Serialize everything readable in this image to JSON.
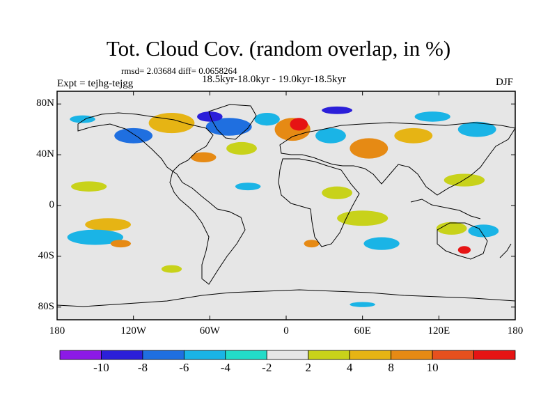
{
  "title": "Tot. Cloud Cov. (random overlap, in %)",
  "stats": "rmsd= 2.03684 diff= 0.0658264",
  "period": "18.5kyr-18.0kyr - 19.0kyr-18.5kyr",
  "experiment": "Expt = tejhg-tejgg",
  "season": "DJF",
  "map": {
    "projection": "cylindrical-equidistant",
    "lon_range": [
      -180,
      180
    ],
    "lat_range": [
      -90,
      90
    ],
    "background_color": "#e6e6e6",
    "y_ticks": [
      {
        "label": "80N",
        "value": 80
      },
      {
        "label": "40N",
        "value": 40
      },
      {
        "label": "0",
        "value": 0
      },
      {
        "label": "40S",
        "value": -40
      },
      {
        "label": "80S",
        "value": -80
      }
    ],
    "x_ticks": [
      {
        "label": "180",
        "value": -180
      },
      {
        "label": "120W",
        "value": -120
      },
      {
        "label": "60W",
        "value": -60
      },
      {
        "label": "0",
        "value": 0
      },
      {
        "label": "60E",
        "value": 60
      },
      {
        "label": "120E",
        "value": 120
      },
      {
        "label": "180",
        "value": 180
      }
    ],
    "anomalies": [
      {
        "lon": -140,
        "lat": -15,
        "rx": 18,
        "ry": 5,
        "level": 4,
        "name": "pacific-south-positive"
      },
      {
        "lon": -150,
        "lat": -25,
        "rx": 22,
        "ry": 6,
        "level": -4,
        "name": "pacific-south-negative"
      },
      {
        "lon": -130,
        "lat": -30,
        "rx": 8,
        "ry": 3,
        "level": 6,
        "name": "pacific-south-core"
      },
      {
        "lon": -155,
        "lat": 15,
        "rx": 14,
        "ry": 4,
        "level": 2,
        "name": "pacific-north-positive"
      },
      {
        "lon": -120,
        "lat": 55,
        "rx": 15,
        "ry": 6,
        "level": -6,
        "name": "north-america-negative"
      },
      {
        "lon": -90,
        "lat": 65,
        "rx": 18,
        "ry": 8,
        "level": 4,
        "name": "hudson-positive"
      },
      {
        "lon": -45,
        "lat": 62,
        "rx": 18,
        "ry": 7,
        "level": -6,
        "name": "greenland-negative"
      },
      {
        "lon": -60,
        "lat": 70,
        "rx": 10,
        "ry": 4,
        "level": -8,
        "name": "baffin-core"
      },
      {
        "lon": -65,
        "lat": 38,
        "rx": 10,
        "ry": 4,
        "level": 6,
        "name": "us-east-positive"
      },
      {
        "lon": -35,
        "lat": 45,
        "rx": 12,
        "ry": 5,
        "level": 2,
        "name": "atlantic-north-positive"
      },
      {
        "lon": 5,
        "lat": 60,
        "rx": 14,
        "ry": 9,
        "level": 6,
        "name": "scandinavia-positive"
      },
      {
        "lon": 10,
        "lat": 64,
        "rx": 7,
        "ry": 5,
        "level": 10,
        "name": "scandinavia-core"
      },
      {
        "lon": -15,
        "lat": 68,
        "rx": 10,
        "ry": 5,
        "level": -4,
        "name": "norwegian-sea-negative"
      },
      {
        "lon": 35,
        "lat": 55,
        "rx": 12,
        "ry": 6,
        "level": -4,
        "name": "russia-negative"
      },
      {
        "lon": 65,
        "lat": 45,
        "rx": 15,
        "ry": 8,
        "level": 6,
        "name": "central-asia-positive"
      },
      {
        "lon": 100,
        "lat": 55,
        "rx": 15,
        "ry": 6,
        "level": 4,
        "name": "siberia-positive"
      },
      {
        "lon": 115,
        "lat": 70,
        "rx": 14,
        "ry": 4,
        "level": -4,
        "name": "siberia-north-negative"
      },
      {
        "lon": 150,
        "lat": 60,
        "rx": 15,
        "ry": 6,
        "level": -4,
        "name": "northeast-asia-negative"
      },
      {
        "lon": 140,
        "lat": 20,
        "rx": 16,
        "ry": 5,
        "level": 2,
        "name": "pacific-west-positive"
      },
      {
        "lon": -30,
        "lat": 15,
        "rx": 10,
        "ry": 3,
        "level": -4,
        "name": "atlantic-tropical-negative"
      },
      {
        "lon": 40,
        "lat": 10,
        "rx": 12,
        "ry": 5,
        "level": 2,
        "name": "east-africa-positive"
      },
      {
        "lon": 60,
        "lat": -10,
        "rx": 20,
        "ry": 6,
        "level": 2,
        "name": "indian-ocean-positive"
      },
      {
        "lon": 75,
        "lat": -30,
        "rx": 14,
        "ry": 5,
        "level": -4,
        "name": "indian-ocean-south-negative"
      },
      {
        "lon": 20,
        "lat": -30,
        "rx": 6,
        "ry": 3,
        "level": 6,
        "name": "south-africa-core"
      },
      {
        "lon": 130,
        "lat": -18,
        "rx": 12,
        "ry": 5,
        "level": 2,
        "name": "australia-north-positive"
      },
      {
        "lon": 155,
        "lat": -20,
        "rx": 12,
        "ry": 5,
        "level": -4,
        "name": "coral-sea-negative"
      },
      {
        "lon": 140,
        "lat": -35,
        "rx": 5,
        "ry": 3,
        "level": 10,
        "name": "australia-southeast-core"
      },
      {
        "lon": -160,
        "lat": 68,
        "rx": 10,
        "ry": 3,
        "level": -4,
        "name": "arctic-west-negative"
      },
      {
        "lon": 40,
        "lat": 75,
        "rx": 12,
        "ry": 3,
        "level": -8,
        "name": "barents-negative"
      },
      {
        "lon": -90,
        "lat": -50,
        "rx": 8,
        "ry": 3,
        "level": 2,
        "name": "south-pacific-positive"
      },
      {
        "lon": 60,
        "lat": -78,
        "rx": 10,
        "ry": 2,
        "level": -4,
        "name": "antarctic-negative"
      }
    ]
  },
  "colorbar": {
    "labels": [
      "-10",
      "-8",
      "-6",
      "-4",
      "-2",
      "2",
      "4",
      "8",
      "10"
    ],
    "colors": [
      "#8c1ae6",
      "#2b1fd9",
      "#1f6fe0",
      "#1ab4e6",
      "#22dcc8",
      "#e6e6e6",
      "#c8d21a",
      "#e6b414",
      "#e68a14",
      "#e6501e",
      "#e61414"
    ]
  }
}
